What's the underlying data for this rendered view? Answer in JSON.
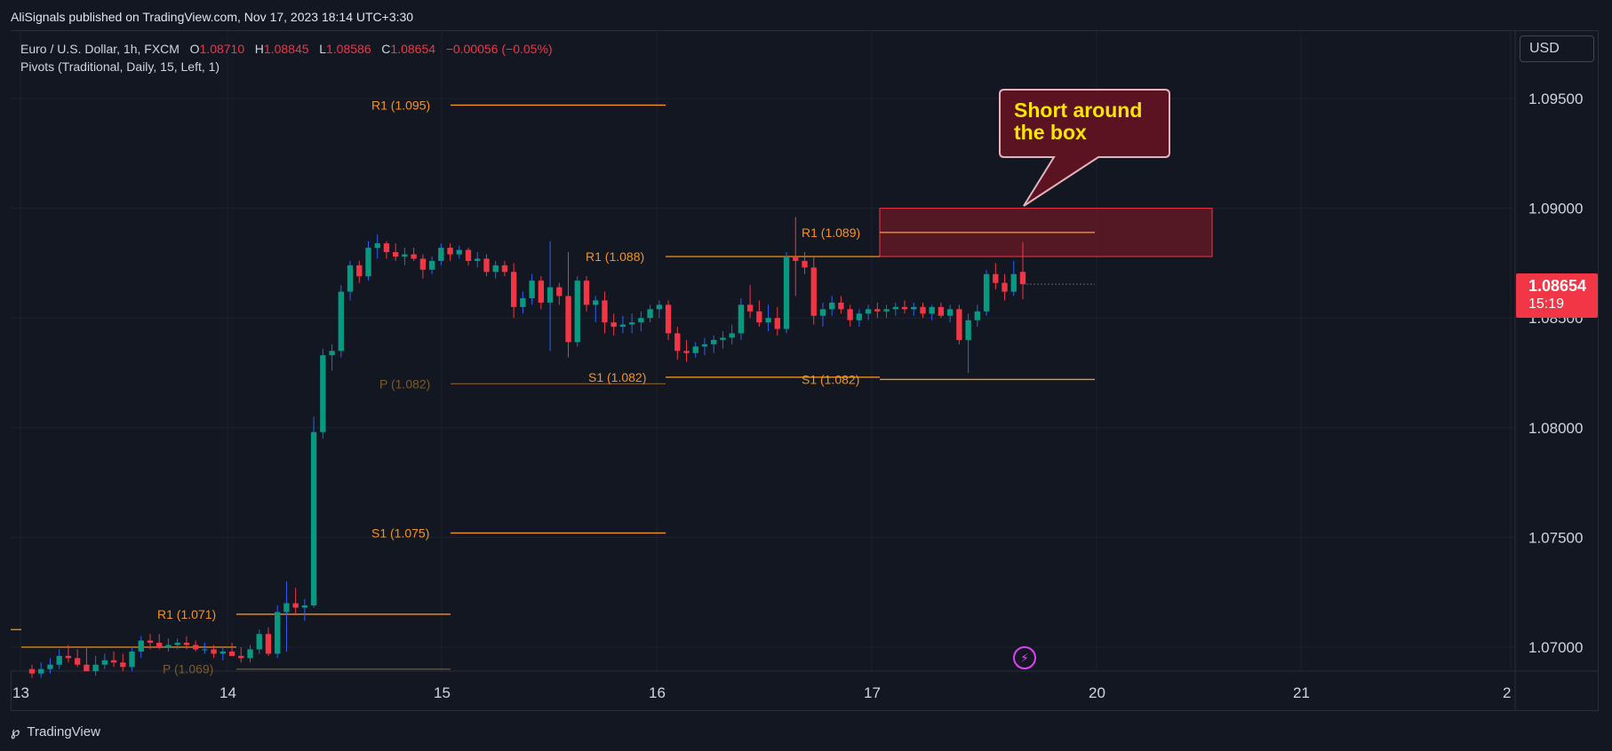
{
  "header": {
    "published_text": "AliSignals published on TradingView.com, Nov 17, 2023 18:14 UTC+3:30"
  },
  "legend": {
    "symbol": "Euro / U.S. Dollar, 1h, FXCM",
    "o_label": "O",
    "o_value": "1.08710",
    "h_label": "H",
    "h_value": "1.08845",
    "l_label": "L",
    "l_value": "1.08586",
    "c_label": "C",
    "c_value": "1.08654",
    "change": "−0.00056 (−0.05%)",
    "indicator": "Pivots (Traditional, Daily, 15, Left, 1)"
  },
  "currency_button": "USD",
  "last_price": {
    "price": "1.08654",
    "countdown": "15:19"
  },
  "callout": {
    "line1": "Short around",
    "line2": "the box"
  },
  "footer": {
    "brand": "TradingView"
  },
  "colors": {
    "up": "#26a69a",
    "up_fill": "#089981",
    "down": "#f23645",
    "wick_up": "#2962ff",
    "pivot_line": "#f7931a",
    "pivot_p": "#7a5a2a",
    "zone_fill": "#6b1a26",
    "callout_fill": "#5c1321",
    "callout_text": "#ffe600",
    "grid": "#1e222d",
    "background": "#131722"
  },
  "chart_data": {
    "type": "candlestick",
    "symbol": "EURUSD",
    "timeframe": "1h",
    "x_ticks": [
      "13",
      "14",
      "15",
      "16",
      "17",
      "20",
      "21",
      "2"
    ],
    "y_ticks": [
      "1.09500",
      "1.09000",
      "1.08500",
      "1.08000",
      "1.07500",
      "1.07000"
    ],
    "ylim": [
      1.0688,
      1.0974
    ],
    "grid": true,
    "candles": [
      [
        1.069,
        1.0692,
        1.0686,
        1.0688
      ],
      [
        1.0688,
        1.0693,
        1.0686,
        1.069
      ],
      [
        1.069,
        1.0695,
        1.0688,
        1.0692
      ],
      [
        1.0692,
        1.0699,
        1.069,
        1.0696
      ],
      [
        1.0696,
        1.0701,
        1.0693,
        1.0695
      ],
      [
        1.0695,
        1.0699,
        1.0691,
        1.0692
      ],
      [
        1.0692,
        1.07,
        1.069,
        1.0689
      ],
      [
        1.0689,
        1.0696,
        1.0687,
        1.0692
      ],
      [
        1.0692,
        1.0697,
        1.069,
        1.0694
      ],
      [
        1.0694,
        1.0698,
        1.0691,
        1.0693
      ],
      [
        1.0693,
        1.0697,
        1.0689,
        1.0691
      ],
      [
        1.0691,
        1.07,
        1.0689,
        1.0698
      ],
      [
        1.0698,
        1.0705,
        1.0695,
        1.0703
      ],
      [
        1.0703,
        1.0706,
        1.0699,
        1.0702
      ],
      [
        1.0702,
        1.0706,
        1.0699,
        1.07
      ],
      [
        1.07,
        1.0704,
        1.0698,
        1.0701
      ],
      [
        1.0701,
        1.0704,
        1.0699,
        1.0702
      ],
      [
        1.0702,
        1.0705,
        1.0699,
        1.0701
      ],
      [
        1.0701,
        1.0703,
        1.0698,
        1.0699
      ],
      [
        1.0699,
        1.0702,
        1.0697,
        1.0699
      ],
      [
        1.0699,
        1.0701,
        1.0695,
        1.0697
      ],
      [
        1.0697,
        1.07,
        1.0694,
        1.0698
      ],
      [
        1.0698,
        1.0702,
        1.0696,
        1.0696
      ],
      [
        1.0696,
        1.07,
        1.0693,
        1.0695
      ],
      [
        1.0695,
        1.0701,
        1.0693,
        1.0699
      ],
      [
        1.0699,
        1.0708,
        1.0697,
        1.0706
      ],
      [
        1.0706,
        1.0709,
        1.0696,
        1.0697
      ],
      [
        1.0697,
        1.0719,
        1.0695,
        1.0716
      ],
      [
        1.0716,
        1.073,
        1.0698,
        1.072
      ],
      [
        1.072,
        1.0727,
        1.0715,
        1.0718
      ],
      [
        1.0718,
        1.0722,
        1.0712,
        1.0719
      ],
      [
        1.0719,
        1.0805,
        1.0718,
        1.0798
      ],
      [
        1.0798,
        1.0836,
        1.0795,
        1.0833
      ],
      [
        1.0833,
        1.0838,
        1.0826,
        1.0835
      ],
      [
        1.0835,
        1.0865,
        1.0832,
        1.0862
      ],
      [
        1.0862,
        1.0876,
        1.0858,
        1.0874
      ],
      [
        1.0874,
        1.0876,
        1.0866,
        1.0869
      ],
      [
        1.0869,
        1.0885,
        1.0867,
        1.0882
      ],
      [
        1.0882,
        1.0888,
        1.0877,
        1.0884
      ],
      [
        1.0884,
        1.0885,
        1.0877,
        1.088
      ],
      [
        1.088,
        1.0884,
        1.0876,
        1.0878
      ],
      [
        1.0878,
        1.0882,
        1.0874,
        1.0879
      ],
      [
        1.0879,
        1.0882,
        1.0876,
        1.0877
      ],
      [
        1.0877,
        1.0879,
        1.0868,
        1.0872
      ],
      [
        1.0872,
        1.0878,
        1.087,
        1.0876
      ],
      [
        1.0876,
        1.0884,
        1.0874,
        1.0882
      ],
      [
        1.0882,
        1.0884,
        1.0876,
        1.0879
      ],
      [
        1.0879,
        1.0883,
        1.0877,
        1.0881
      ],
      [
        1.0881,
        1.0882,
        1.0874,
        1.0876
      ],
      [
        1.0876,
        1.088,
        1.0873,
        1.0877
      ],
      [
        1.0877,
        1.0879,
        1.0869,
        1.0871
      ],
      [
        1.0871,
        1.0876,
        1.0868,
        1.0874
      ],
      [
        1.0874,
        1.0876,
        1.0869,
        1.0871
      ],
      [
        1.0871,
        1.0875,
        1.085,
        1.0855
      ],
      [
        1.0855,
        1.0862,
        1.0852,
        1.0859
      ],
      [
        1.0859,
        1.087,
        1.0856,
        1.0867
      ],
      [
        1.0867,
        1.0869,
        1.0854,
        1.0857
      ],
      [
        1.0857,
        1.0885,
        1.0835,
        1.0864
      ],
      [
        1.0864,
        1.0866,
        1.0856,
        1.086
      ],
      [
        1.086,
        1.088,
        1.0832,
        1.0839
      ],
      [
        1.0839,
        1.0869,
        1.0837,
        1.0867
      ],
      [
        1.0867,
        1.0869,
        1.0853,
        1.0856
      ],
      [
        1.0856,
        1.086,
        1.0848,
        1.0858
      ],
      [
        1.0858,
        1.0862,
        1.0843,
        1.0848
      ],
      [
        1.0848,
        1.0852,
        1.0842,
        1.0846
      ],
      [
        1.0846,
        1.0851,
        1.0843,
        1.0847
      ],
      [
        1.0847,
        1.0852,
        1.0843,
        1.0848
      ],
      [
        1.0848,
        1.0853,
        1.0844,
        1.085
      ],
      [
        1.085,
        1.0856,
        1.0848,
        1.0854
      ],
      [
        1.0854,
        1.0858,
        1.085,
        1.0856
      ],
      [
        1.0856,
        1.0858,
        1.084,
        1.0843
      ],
      [
        1.0843,
        1.0846,
        1.0831,
        1.0835
      ],
      [
        1.0835,
        1.084,
        1.083,
        1.0834
      ],
      [
        1.0834,
        1.0839,
        1.0832,
        1.0837
      ],
      [
        1.0837,
        1.0841,
        1.0833,
        1.0838
      ],
      [
        1.0838,
        1.0842,
        1.0834,
        1.084
      ],
      [
        1.084,
        1.0844,
        1.0836,
        1.0841
      ],
      [
        1.0841,
        1.0847,
        1.0838,
        1.0843
      ],
      [
        1.0843,
        1.0859,
        1.084,
        1.0856
      ],
      [
        1.0856,
        1.0865,
        1.085,
        1.0853
      ],
      [
        1.0853,
        1.0858,
        1.0846,
        1.0848
      ],
      [
        1.0848,
        1.0856,
        1.0844,
        1.085
      ],
      [
        1.085,
        1.0855,
        1.0842,
        1.0845
      ],
      [
        1.0845,
        1.088,
        1.0843,
        1.0878
      ],
      [
        1.0878,
        1.0896,
        1.086,
        1.0876
      ],
      [
        1.0876,
        1.088,
        1.087,
        1.0873
      ],
      [
        1.0873,
        1.0878,
        1.0847,
        1.0851
      ],
      [
        1.0851,
        1.0857,
        1.0846,
        1.0854
      ],
      [
        1.0854,
        1.086,
        1.0851,
        1.0857
      ],
      [
        1.0857,
        1.086,
        1.0852,
        1.0854
      ],
      [
        1.0854,
        1.0856,
        1.0846,
        1.0849
      ],
      [
        1.0849,
        1.0854,
        1.0846,
        1.0852
      ],
      [
        1.0852,
        1.0856,
        1.0849,
        1.0854
      ],
      [
        1.0854,
        1.0857,
        1.085,
        1.0853
      ],
      [
        1.0853,
        1.0856,
        1.085,
        1.0854
      ],
      [
        1.0854,
        1.0857,
        1.0851,
        1.0855
      ],
      [
        1.0855,
        1.0858,
        1.0852,
        1.0854
      ],
      [
        1.0854,
        1.0857,
        1.0851,
        1.0855
      ],
      [
        1.0855,
        1.0857,
        1.085,
        1.0852
      ],
      [
        1.0852,
        1.0856,
        1.0849,
        1.0855
      ],
      [
        1.0855,
        1.0857,
        1.085,
        1.0851
      ],
      [
        1.0851,
        1.0856,
        1.0848,
        1.0854
      ],
      [
        1.0854,
        1.0856,
        1.0838,
        1.084
      ],
      [
        1.084,
        1.0852,
        1.0825,
        1.0849
      ],
      [
        1.0849,
        1.0856,
        1.0846,
        1.0853
      ],
      [
        1.0853,
        1.0872,
        1.0851,
        1.087
      ],
      [
        1.087,
        1.0875,
        1.0863,
        1.0866
      ],
      [
        1.0866,
        1.087,
        1.0858,
        1.0862
      ],
      [
        1.0862,
        1.0876,
        1.086,
        1.087
      ],
      [
        1.0871,
        1.08845,
        1.08586,
        1.08654
      ]
    ],
    "pivot_levels": [
      {
        "label": "R1 (1.095)",
        "value": 1.0947
      },
      {
        "label": "P (1.082)",
        "value": 1.082
      },
      {
        "label": "S1 (1.075)",
        "value": 1.0752
      },
      {
        "label": "R1 (1.071)",
        "value": 1.0715
      },
      {
        "label": "R1 (1.088)",
        "value": 1.0878
      },
      {
        "label": "S1 (1.082)",
        "value": 1.0823
      },
      {
        "label": "R1 (1.089)",
        "value": 1.0889
      },
      {
        "label": "S1 (1.082)",
        "value": 1.0822
      },
      {
        "label": "P (1.069)",
        "value": 1.069
      }
    ],
    "sell_zone": {
      "from": 1.0878,
      "to": 1.09
    },
    "last_price": 1.08654
  }
}
